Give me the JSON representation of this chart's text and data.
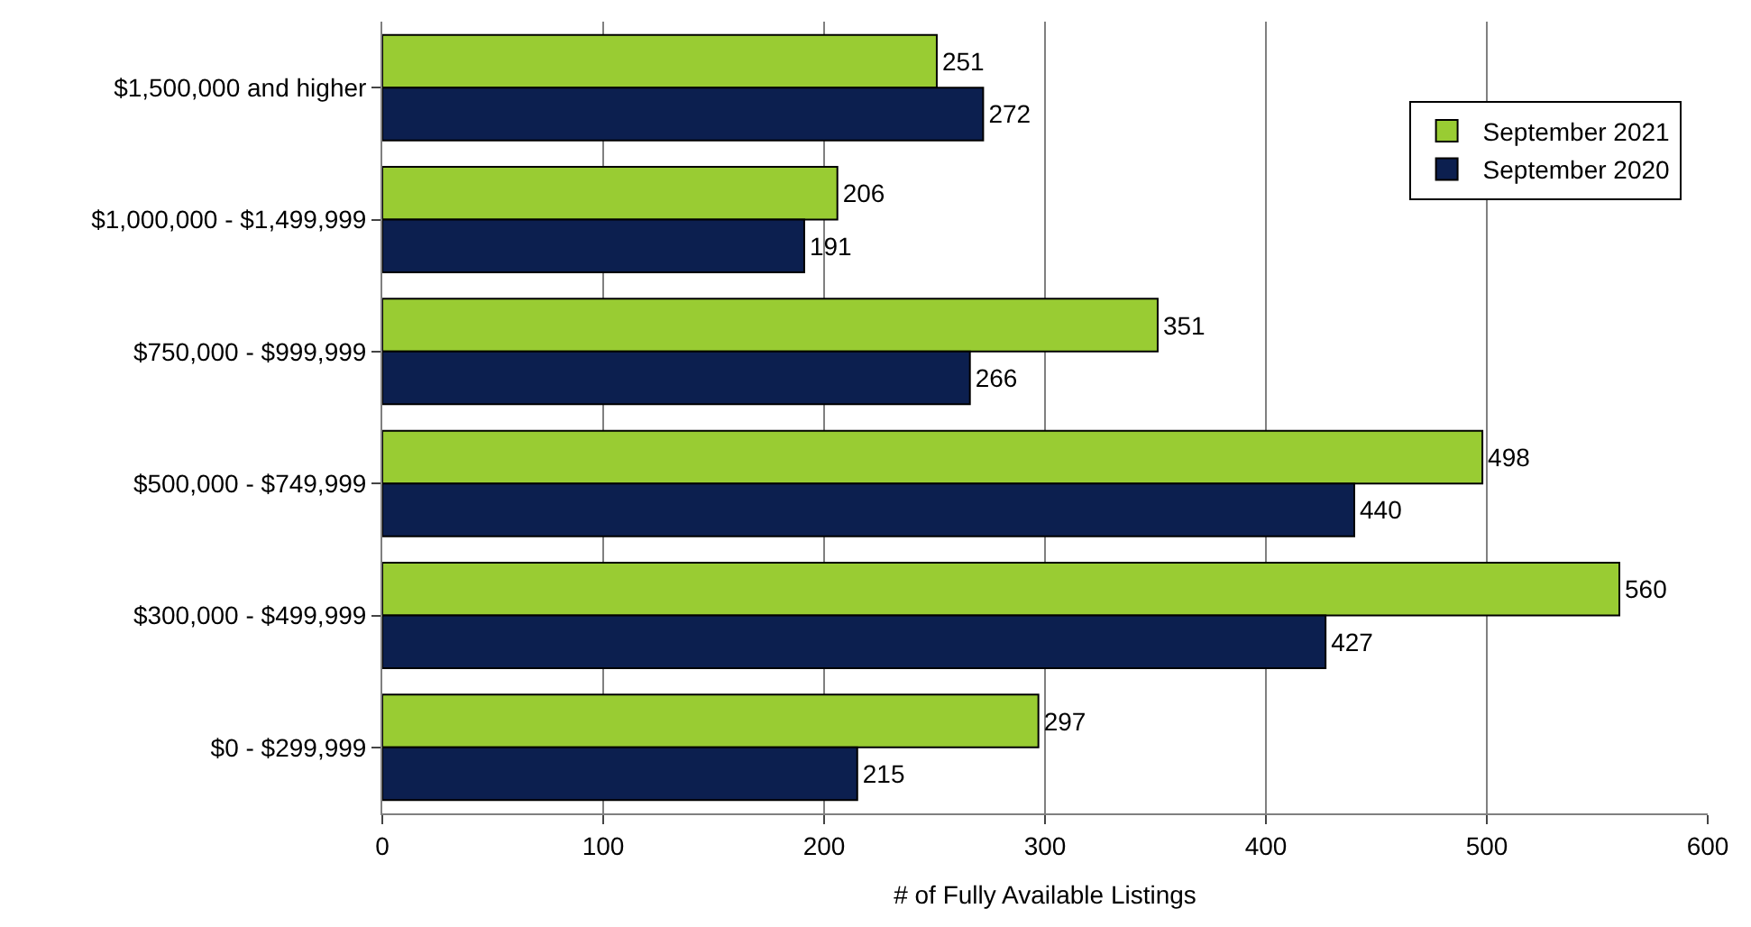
{
  "chart_data": {
    "type": "bar",
    "orientation": "horizontal",
    "xlabel": "# of Fully Available Listings",
    "categories": [
      "$1,500,000 and higher",
      "$1,000,000 - $1,499,999",
      "$750,000 - $999,999",
      "$500,000 - $749,999",
      "$300,000 - $499,999",
      "$0 - $299,999"
    ],
    "series": [
      {
        "name": "September 2021",
        "color": "#99cc33",
        "values": [
          251,
          206,
          351,
          498,
          560,
          297
        ]
      },
      {
        "name": "September 2020",
        "color": "#0c1f4f",
        "values": [
          272,
          191,
          266,
          440,
          427,
          215
        ]
      }
    ],
    "xlim": [
      0,
      600
    ],
    "xticks": [
      0,
      100,
      200,
      300,
      400,
      500,
      600
    ],
    "grid": "x",
    "legend": "top right",
    "data_labels": true
  }
}
